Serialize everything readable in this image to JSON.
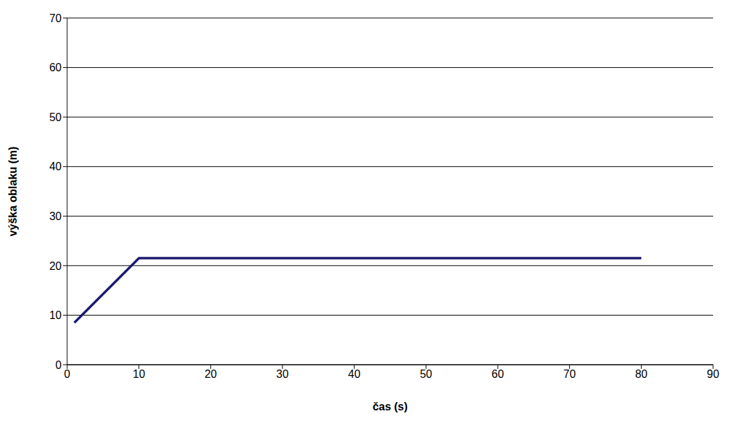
{
  "chart_data": {
    "type": "line",
    "x_label": "čas (s)",
    "y_label": "výška oblaku (m)",
    "x": [
      1,
      10,
      80
    ],
    "values": [
      8.5,
      21.5,
      21.5
    ],
    "color": "#1a1a6e",
    "xlim": [
      0,
      90
    ],
    "xticks": [
      0,
      10,
      20,
      30,
      40,
      50,
      60,
      70,
      80,
      90
    ],
    "ylim": [
      0,
      70
    ],
    "yticks": [
      0,
      10,
      20,
      30,
      40,
      50,
      60,
      70
    ],
    "grid": true
  }
}
